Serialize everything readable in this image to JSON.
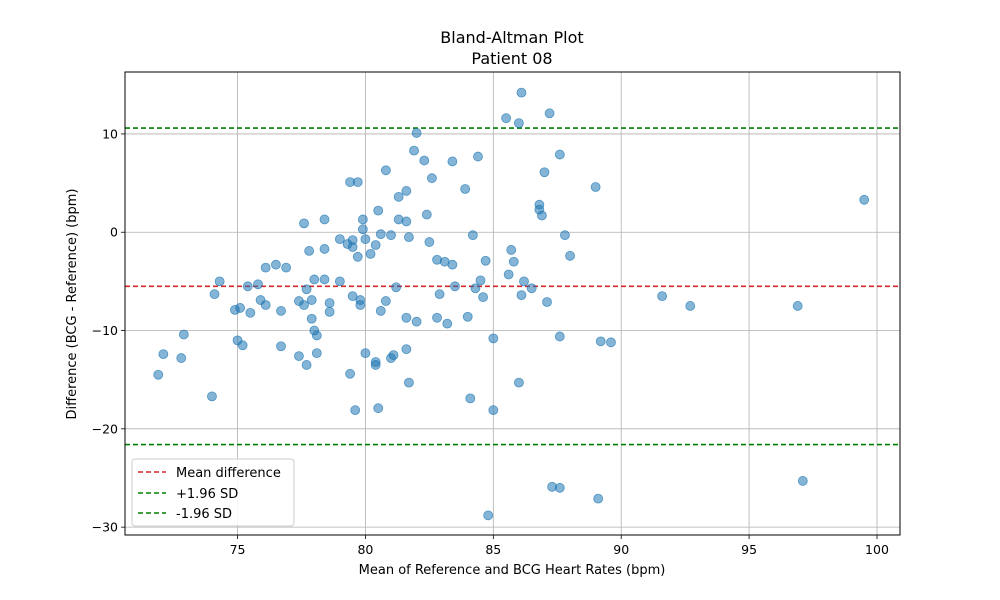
{
  "chart_data": {
    "type": "scatter",
    "title": "Bland-Altman Plot",
    "subtitle": "Patient 08",
    "xlabel": "Mean of Reference and BCG Heart Rates (bpm)",
    "ylabel": "Difference (BCG - Reference) (bpm)",
    "xlim": [
      70.6,
      100.9
    ],
    "ylim": [
      -30.8,
      16.3
    ],
    "xticks": [
      75,
      80,
      85,
      90,
      95,
      100
    ],
    "yticks": [
      -30,
      -20,
      -10,
      0,
      10
    ],
    "grid": true,
    "legend_position": "lower-left",
    "point_color": "#1f77b4",
    "mean_difference": -5.5,
    "upper_loa": 10.6,
    "lower_loa": -21.6,
    "lines": [
      {
        "name": "Mean difference",
        "key": "mean_difference",
        "color": "#d62728",
        "style": "dashed"
      },
      {
        "name": "+1.96 SD",
        "key": "upper_loa",
        "color": "#008000",
        "style": "dashed"
      },
      {
        "name": "-1.96 SD",
        "key": "lower_loa",
        "color": "#008000",
        "style": "dashed"
      }
    ],
    "points": [
      [
        71.9,
        -14.5
      ],
      [
        72.1,
        -12.4
      ],
      [
        72.8,
        -12.8
      ],
      [
        72.9,
        -10.4
      ],
      [
        74.0,
        -16.7
      ],
      [
        74.1,
        -6.3
      ],
      [
        74.3,
        -5.0
      ],
      [
        74.9,
        -7.9
      ],
      [
        75.0,
        -11.0
      ],
      [
        75.1,
        -7.7
      ],
      [
        75.2,
        -11.5
      ],
      [
        75.4,
        -5.5
      ],
      [
        75.5,
        -8.2
      ],
      [
        75.8,
        -5.3
      ],
      [
        75.9,
        -6.9
      ],
      [
        76.1,
        -7.4
      ],
      [
        76.1,
        -3.6
      ],
      [
        76.5,
        -3.3
      ],
      [
        76.7,
        -11.6
      ],
      [
        76.7,
        -8.0
      ],
      [
        76.9,
        -3.6
      ],
      [
        77.4,
        -7.0
      ],
      [
        77.4,
        -12.6
      ],
      [
        77.6,
        -7.4
      ],
      [
        77.6,
        0.9
      ],
      [
        77.7,
        -13.5
      ],
      [
        77.7,
        -5.8
      ],
      [
        77.9,
        -6.9
      ],
      [
        77.9,
        -8.8
      ],
      [
        77.8,
        -1.9
      ],
      [
        78.0,
        -4.8
      ],
      [
        78.0,
        -10.0
      ],
      [
        78.1,
        -10.5
      ],
      [
        78.1,
        -12.3
      ],
      [
        78.4,
        -4.8
      ],
      [
        78.4,
        1.3
      ],
      [
        78.4,
        -1.7
      ],
      [
        78.6,
        -7.2
      ],
      [
        78.6,
        -8.1
      ],
      [
        79.0,
        -0.7
      ],
      [
        79.0,
        -5.0
      ],
      [
        79.3,
        -1.2
      ],
      [
        79.4,
        -14.4
      ],
      [
        79.4,
        5.1
      ],
      [
        79.5,
        -1.5
      ],
      [
        79.5,
        -0.8
      ],
      [
        79.5,
        -6.5
      ],
      [
        79.6,
        -18.1
      ],
      [
        79.7,
        5.1
      ],
      [
        79.7,
        -2.5
      ],
      [
        79.8,
        -6.9
      ],
      [
        79.8,
        -7.4
      ],
      [
        79.9,
        1.3
      ],
      [
        79.9,
        0.3
      ],
      [
        80.0,
        -0.7
      ],
      [
        80.0,
        -12.3
      ],
      [
        80.2,
        -2.2
      ],
      [
        80.4,
        -1.3
      ],
      [
        80.4,
        -13.5
      ],
      [
        80.4,
        -13.2
      ],
      [
        80.5,
        2.2
      ],
      [
        80.5,
        -17.9
      ],
      [
        80.6,
        -0.2
      ],
      [
        80.6,
        -8.0
      ],
      [
        80.8,
        -7.0
      ],
      [
        80.8,
        6.3
      ],
      [
        81.0,
        -0.3
      ],
      [
        81.0,
        -12.8
      ],
      [
        81.1,
        -12.5
      ],
      [
        81.2,
        -5.6
      ],
      [
        81.3,
        1.3
      ],
      [
        81.3,
        3.6
      ],
      [
        81.6,
        -8.7
      ],
      [
        81.6,
        4.2
      ],
      [
        81.6,
        1.1
      ],
      [
        81.6,
        -11.9
      ],
      [
        81.7,
        -0.5
      ],
      [
        81.7,
        -15.3
      ],
      [
        81.9,
        8.3
      ],
      [
        82.0,
        10.1
      ],
      [
        82.0,
        -9.1
      ],
      [
        82.3,
        7.3
      ],
      [
        82.4,
        1.8
      ],
      [
        82.5,
        -1.0
      ],
      [
        82.6,
        5.5
      ],
      [
        82.8,
        -2.8
      ],
      [
        82.8,
        -8.7
      ],
      [
        82.9,
        -6.3
      ],
      [
        83.1,
        -3.0
      ],
      [
        83.2,
        -9.3
      ],
      [
        83.4,
        7.2
      ],
      [
        83.4,
        -3.3
      ],
      [
        83.5,
        -5.5
      ],
      [
        83.9,
        4.4
      ],
      [
        84.0,
        -8.6
      ],
      [
        84.1,
        -16.9
      ],
      [
        84.2,
        -0.3
      ],
      [
        84.3,
        -5.7
      ],
      [
        84.4,
        7.7
      ],
      [
        84.5,
        -4.9
      ],
      [
        84.6,
        -6.6
      ],
      [
        84.7,
        -2.9
      ],
      [
        84.8,
        -28.8
      ],
      [
        85.0,
        -18.1
      ],
      [
        85.0,
        -10.8
      ],
      [
        85.5,
        11.6
      ],
      [
        85.6,
        -4.3
      ],
      [
        85.7,
        -1.8
      ],
      [
        85.8,
        -3.0
      ],
      [
        86.0,
        11.1
      ],
      [
        86.0,
        -15.3
      ],
      [
        86.1,
        -6.4
      ],
      [
        86.1,
        14.2
      ],
      [
        86.2,
        -5.0
      ],
      [
        86.5,
        -5.7
      ],
      [
        86.8,
        2.8
      ],
      [
        86.8,
        2.3
      ],
      [
        86.9,
        1.7
      ],
      [
        87.0,
        6.1
      ],
      [
        87.1,
        -7.1
      ],
      [
        87.2,
        12.1
      ],
      [
        87.3,
        -25.9
      ],
      [
        87.6,
        7.9
      ],
      [
        87.6,
        -10.6
      ],
      [
        87.6,
        -26.0
      ],
      [
        87.8,
        -0.3
      ],
      [
        88.0,
        -2.4
      ],
      [
        89.0,
        4.6
      ],
      [
        89.1,
        -27.1
      ],
      [
        89.2,
        -11.1
      ],
      [
        89.6,
        -11.2
      ],
      [
        91.6,
        -6.5
      ],
      [
        92.7,
        -7.5
      ],
      [
        96.9,
        -7.5
      ],
      [
        97.1,
        -25.3
      ],
      [
        99.5,
        3.3
      ]
    ]
  }
}
